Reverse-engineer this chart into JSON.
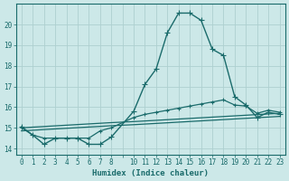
{
  "xlabel": "Humidex (Indice chaleur)",
  "background_color": "#cce8e8",
  "grid_color": "#aed0d0",
  "line_color": "#1a6b6b",
  "xlim": [
    -0.5,
    23.5
  ],
  "ylim": [
    13.7,
    21.0
  ],
  "yticks": [
    14,
    15,
    16,
    17,
    18,
    19,
    20
  ],
  "xtick_labels": [
    "0",
    "1",
    "2",
    "3",
    "4",
    "5",
    "6",
    "7",
    "8",
    "",
    "10",
    "11",
    "12",
    "13",
    "14",
    "15",
    "16",
    "17",
    "18",
    "19",
    "20",
    "21",
    "22",
    "23"
  ],
  "xtick_pos": [
    0,
    1,
    2,
    3,
    4,
    5,
    6,
    7,
    8,
    9,
    10,
    11,
    12,
    13,
    14,
    15,
    16,
    17,
    18,
    19,
    20,
    21,
    22,
    23
  ],
  "series": [
    {
      "x": [
        0,
        1,
        2,
        3,
        4,
        5,
        6,
        7,
        8,
        10,
        11,
        12,
        13,
        14,
        15,
        16,
        17,
        18,
        19,
        20,
        21,
        22,
        23
      ],
      "y": [
        15.05,
        14.65,
        14.2,
        14.5,
        14.5,
        14.5,
        14.2,
        14.2,
        14.55,
        15.8,
        17.1,
        17.85,
        19.6,
        20.55,
        20.55,
        20.2,
        18.8,
        18.5,
        16.5,
        16.1,
        15.5,
        15.75,
        15.65
      ],
      "marker": "+",
      "markersize": 4,
      "linewidth": 1.0
    },
    {
      "x": [
        0,
        1,
        2,
        3,
        4,
        5,
        6,
        7,
        8,
        10,
        11,
        12,
        13,
        14,
        15,
        16,
        17,
        18,
        19,
        20,
        21,
        22,
        23
      ],
      "y": [
        15.0,
        14.65,
        14.5,
        14.5,
        14.5,
        14.5,
        14.5,
        14.85,
        15.0,
        15.5,
        15.65,
        15.75,
        15.85,
        15.95,
        16.05,
        16.15,
        16.25,
        16.35,
        16.1,
        16.05,
        15.7,
        15.85,
        15.75
      ],
      "marker": "+",
      "markersize": 3,
      "linewidth": 0.9
    },
    {
      "x": [
        0,
        8,
        10,
        23
      ],
      "y": [
        15.0,
        15.25,
        15.3,
        15.7
      ],
      "marker": null,
      "linewidth": 0.9
    },
    {
      "x": [
        0,
        8,
        10,
        23
      ],
      "y": [
        14.85,
        15.1,
        15.15,
        15.55
      ],
      "marker": null,
      "linewidth": 0.9
    }
  ]
}
